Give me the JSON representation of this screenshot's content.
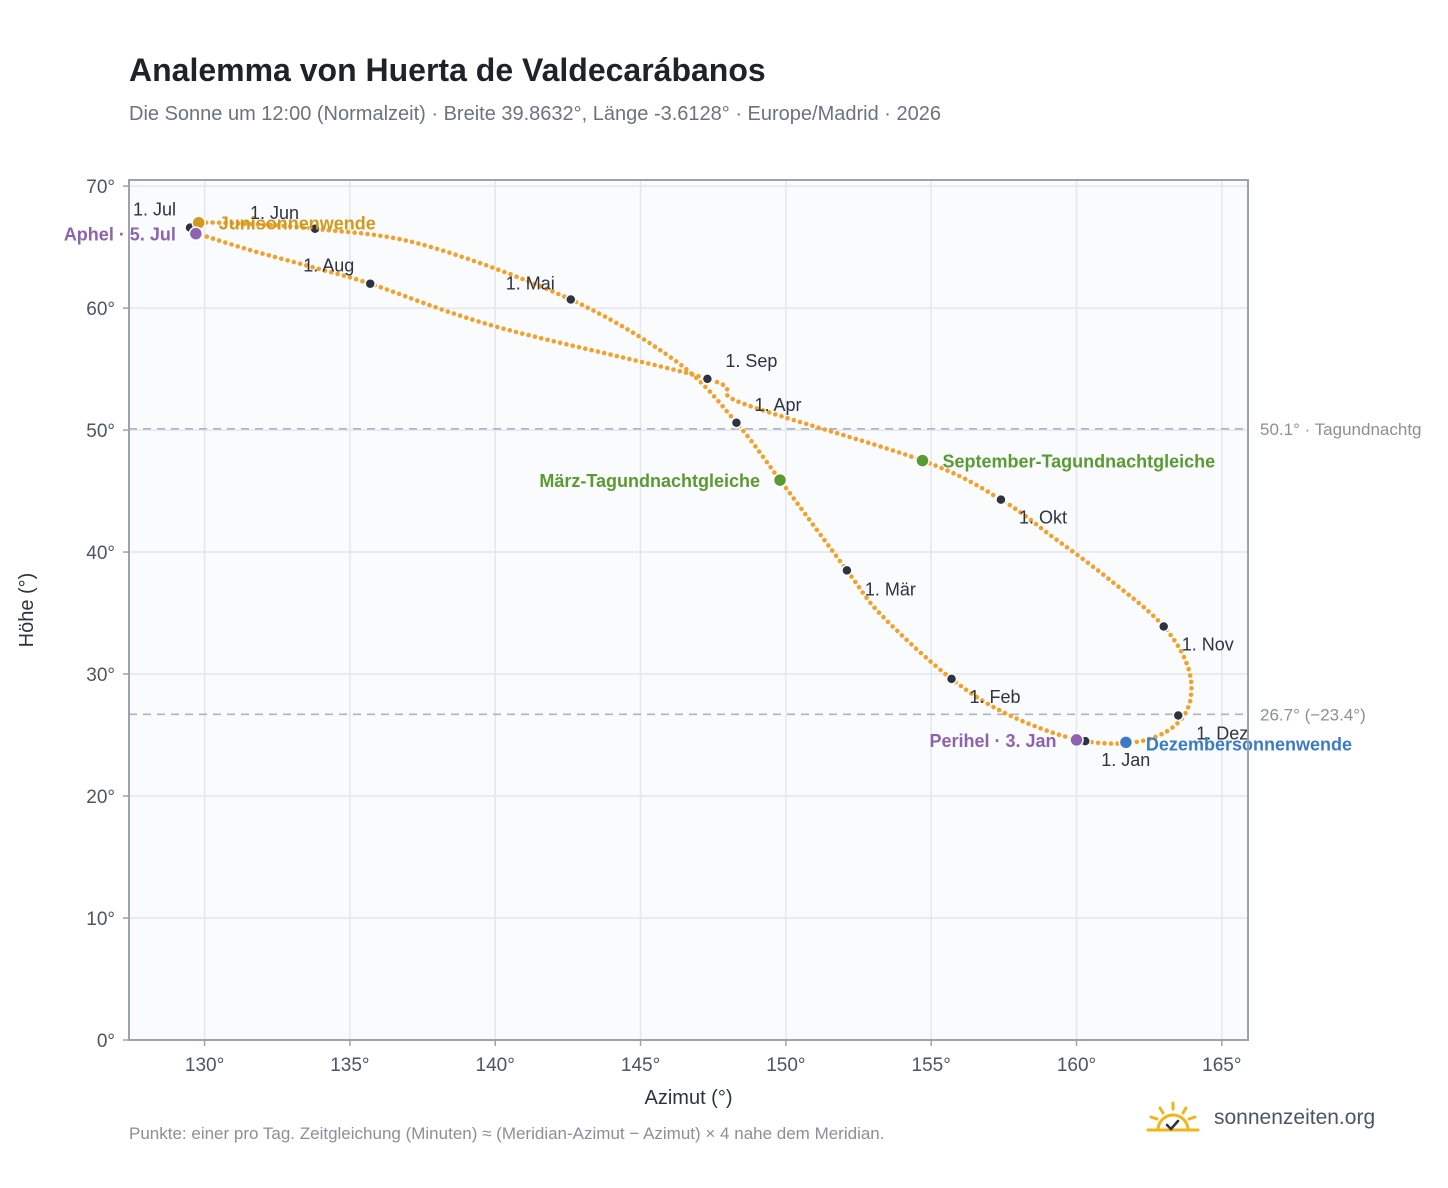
{
  "title": "Analemma von Huerta de Valdecarábanos",
  "subtitle": "Die Sonne um 12:00 (Normalzeit) · Breite 39.8632°, Länge -3.6128° · Europe/Madrid · 2026",
  "footnote": "Punkte: einer pro Tag. Zeitgleichung (Minuten) ≈ (Meridian-Azimut − Azimut) × 4 nahe dem Meridian.",
  "logo": {
    "text": "sonnenzeiten.org",
    "icon": "sun-check-icon"
  },
  "colors": {
    "curve": "#f2a12c",
    "month_dot": "#2d3340",
    "equinox": "#5a9a32",
    "solstice_june": "#d19a1a",
    "solstice_december": "#3a7bc8",
    "apsis": "#8e62b0",
    "reference": "#a9b4c4",
    "plot_bg": "#f9fbfd",
    "grid": "#e3e8ee",
    "frame": "#9aa3ae"
  },
  "chart_data": {
    "type": "scatter",
    "xlabel": "Azimut (°)",
    "ylabel": "Höhe (°)",
    "xlim": [
      127.4,
      165.9
    ],
    "ylim": [
      0,
      70.5
    ],
    "xticks": [
      130,
      135,
      140,
      145,
      150,
      155,
      160,
      165
    ],
    "yticks": [
      0,
      10,
      20,
      30,
      40,
      50,
      60,
      70
    ],
    "xtick_labels": [
      "130°",
      "135°",
      "140°",
      "145°",
      "150°",
      "155°",
      "160°",
      "165°"
    ],
    "ytick_labels": [
      "0°",
      "10°",
      "20°",
      "30°",
      "40°",
      "50°",
      "60°",
      "70°"
    ],
    "grid": true,
    "reference_lines": [
      {
        "y": 50.1,
        "label": "50.1° · Tagundnachtg"
      },
      {
        "y": 26.7,
        "label": "26.7° (−23.4°)"
      }
    ],
    "path_keypoints": [
      [
        160.3,
        24.5
      ],
      [
        162.4,
        24.6
      ],
      [
        163.7,
        26.6
      ],
      [
        163.9,
        30.0
      ],
      [
        163.0,
        33.9
      ],
      [
        161.0,
        38.0
      ],
      [
        159.2,
        41.2
      ],
      [
        157.4,
        44.3
      ],
      [
        154.7,
        47.5
      ],
      [
        148.5,
        52.2
      ],
      [
        147.3,
        54.2
      ],
      [
        140.0,
        58.5
      ],
      [
        135.7,
        62.0
      ],
      [
        133.8,
        63.3
      ],
      [
        131.5,
        64.8
      ],
      [
        129.8,
        66.1
      ],
      [
        129.5,
        66.6
      ],
      [
        129.8,
        67.0
      ],
      [
        131.5,
        66.9
      ],
      [
        133.8,
        66.5
      ],
      [
        137.5,
        65.2
      ],
      [
        142.6,
        60.7
      ],
      [
        146.3,
        55.5
      ],
      [
        148.3,
        50.6
      ],
      [
        149.8,
        45.9
      ],
      [
        152.1,
        38.5
      ],
      [
        153.3,
        34.8
      ],
      [
        155.7,
        29.6
      ],
      [
        157.8,
        26.5
      ],
      [
        160.3,
        24.5
      ]
    ],
    "month_markers": [
      {
        "label": "1. Jan",
        "azimuth": 160.3,
        "altitude": 24.5
      },
      {
        "label": "1. Feb",
        "azimuth": 155.7,
        "altitude": 29.6
      },
      {
        "label": "1. Mär",
        "azimuth": 152.1,
        "altitude": 38.5
      },
      {
        "label": "1. Apr",
        "azimuth": 148.3,
        "altitude": 50.6
      },
      {
        "label": "1. Mai",
        "azimuth": 142.6,
        "altitude": 60.7
      },
      {
        "label": "1. Jun",
        "azimuth": 133.8,
        "altitude": 66.5
      },
      {
        "label": "1. Jul",
        "azimuth": 129.5,
        "altitude": 66.6
      },
      {
        "label": "1. Aug",
        "azimuth": 135.7,
        "altitude": 62.0
      },
      {
        "label": "1. Sep",
        "azimuth": 147.3,
        "altitude": 54.2
      },
      {
        "label": "1. Okt",
        "azimuth": 157.4,
        "altitude": 44.3
      },
      {
        "label": "1. Nov",
        "azimuth": 163.0,
        "altitude": 33.9
      },
      {
        "label": "1. Dez",
        "azimuth": 163.5,
        "altitude": 26.6
      }
    ],
    "events": [
      {
        "label": "Junisonnenwende",
        "azimuth": 129.8,
        "altitude": 67.0,
        "kind": "solstice_june"
      },
      {
        "label": "Dezembersonnenwende",
        "azimuth": 161.7,
        "altitude": 24.4,
        "kind": "solstice_december"
      },
      {
        "label": "März-Tagundnachtgleiche",
        "azimuth": 149.8,
        "altitude": 45.9,
        "kind": "equinox"
      },
      {
        "label": "September-Tagundnachtgleiche",
        "azimuth": 154.7,
        "altitude": 47.5,
        "kind": "equinox"
      },
      {
        "label": "Aphel · 5. Jul",
        "azimuth": 129.7,
        "altitude": 66.1,
        "kind": "apsis"
      },
      {
        "label": "Perihel · 3. Jan",
        "azimuth": 160.0,
        "altitude": 24.6,
        "kind": "apsis"
      }
    ]
  }
}
